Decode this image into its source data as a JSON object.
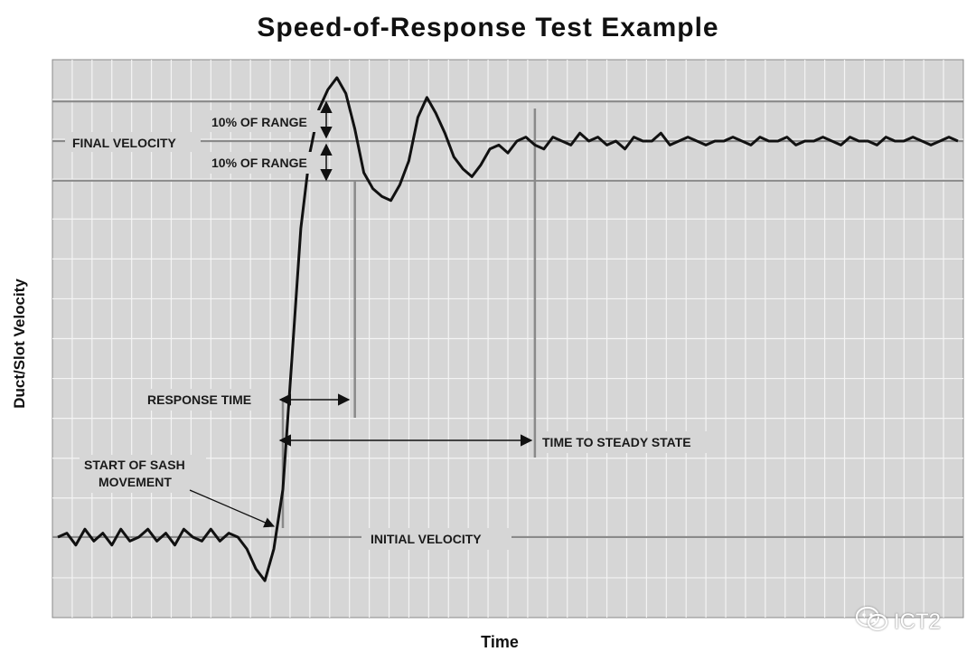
{
  "chart_data": {
    "type": "line",
    "title": "Speed-of-Response Test Example",
    "xlabel": "Time",
    "ylabel": "Duct/Slot Velocity",
    "grid": true,
    "xlim": [
      0,
      100
    ],
    "ylim": [
      -25,
      110
    ],
    "initial_velocity": 0,
    "final_velocity": 100,
    "tolerance_percent_of_range": 10,
    "start_of_sash_movement": 25,
    "response_time_end": 33,
    "steady_state_time": 53,
    "series": [
      {
        "x": [
          0,
          1,
          2,
          3,
          4,
          5,
          6,
          7,
          8,
          9,
          10,
          11,
          12,
          13,
          14,
          15,
          16,
          17,
          18,
          19,
          20,
          21,
          22,
          23,
          24,
          25,
          26,
          27,
          28,
          29,
          30,
          31,
          32,
          33,
          34,
          35,
          36,
          37,
          38,
          39,
          40,
          41,
          42,
          43,
          44,
          45,
          46,
          47,
          48,
          49,
          50,
          51,
          52,
          53,
          54,
          55,
          56,
          57,
          58,
          59,
          60,
          61,
          62,
          63,
          64,
          65,
          66,
          67,
          68,
          69,
          70,
          71,
          72,
          73,
          74,
          75,
          76,
          77,
          78,
          79,
          80,
          81,
          82,
          83,
          84,
          85,
          86,
          87,
          88,
          89,
          90,
          91,
          92,
          93,
          94,
          95,
          96,
          97,
          98,
          99,
          100
        ],
        "y": [
          0,
          1,
          -2,
          2,
          -1,
          1,
          -2,
          2,
          -1,
          0,
          2,
          -1,
          1,
          -2,
          2,
          0,
          -1,
          2,
          -1,
          1,
          0,
          -3,
          -8,
          -11,
          -3,
          12,
          45,
          78,
          97,
          108,
          113,
          116,
          112,
          103,
          92,
          88,
          86,
          85,
          89,
          95,
          106,
          111,
          107,
          102,
          96,
          93,
          91,
          94,
          98,
          99,
          97,
          100,
          101,
          99,
          98,
          101,
          100,
          99,
          102,
          100,
          101,
          99,
          100,
          98,
          101,
          100,
          100,
          102,
          99,
          100,
          101,
          100,
          99,
          100,
          100,
          101,
          100,
          99,
          101,
          100,
          100,
          101,
          99,
          100,
          100,
          101,
          100,
          99,
          101,
          100,
          100,
          99,
          101,
          100,
          100,
          101,
          100,
          99,
          100,
          101,
          100
        ]
      }
    ],
    "annotations": {
      "tolerance_label": "10% OF RANGE",
      "final_velocity": "FINAL VELOCITY",
      "initial_velocity": "INITIAL VELOCITY",
      "response_time": "RESPONSE TIME",
      "time_to_steady_state": "TIME TO STEADY STATE",
      "start_of_sash_line1": "START OF SASH",
      "start_of_sash_line2": "MOVEMENT"
    }
  },
  "watermark": {
    "text": "ICT2",
    "icon": "wechat-icon"
  }
}
